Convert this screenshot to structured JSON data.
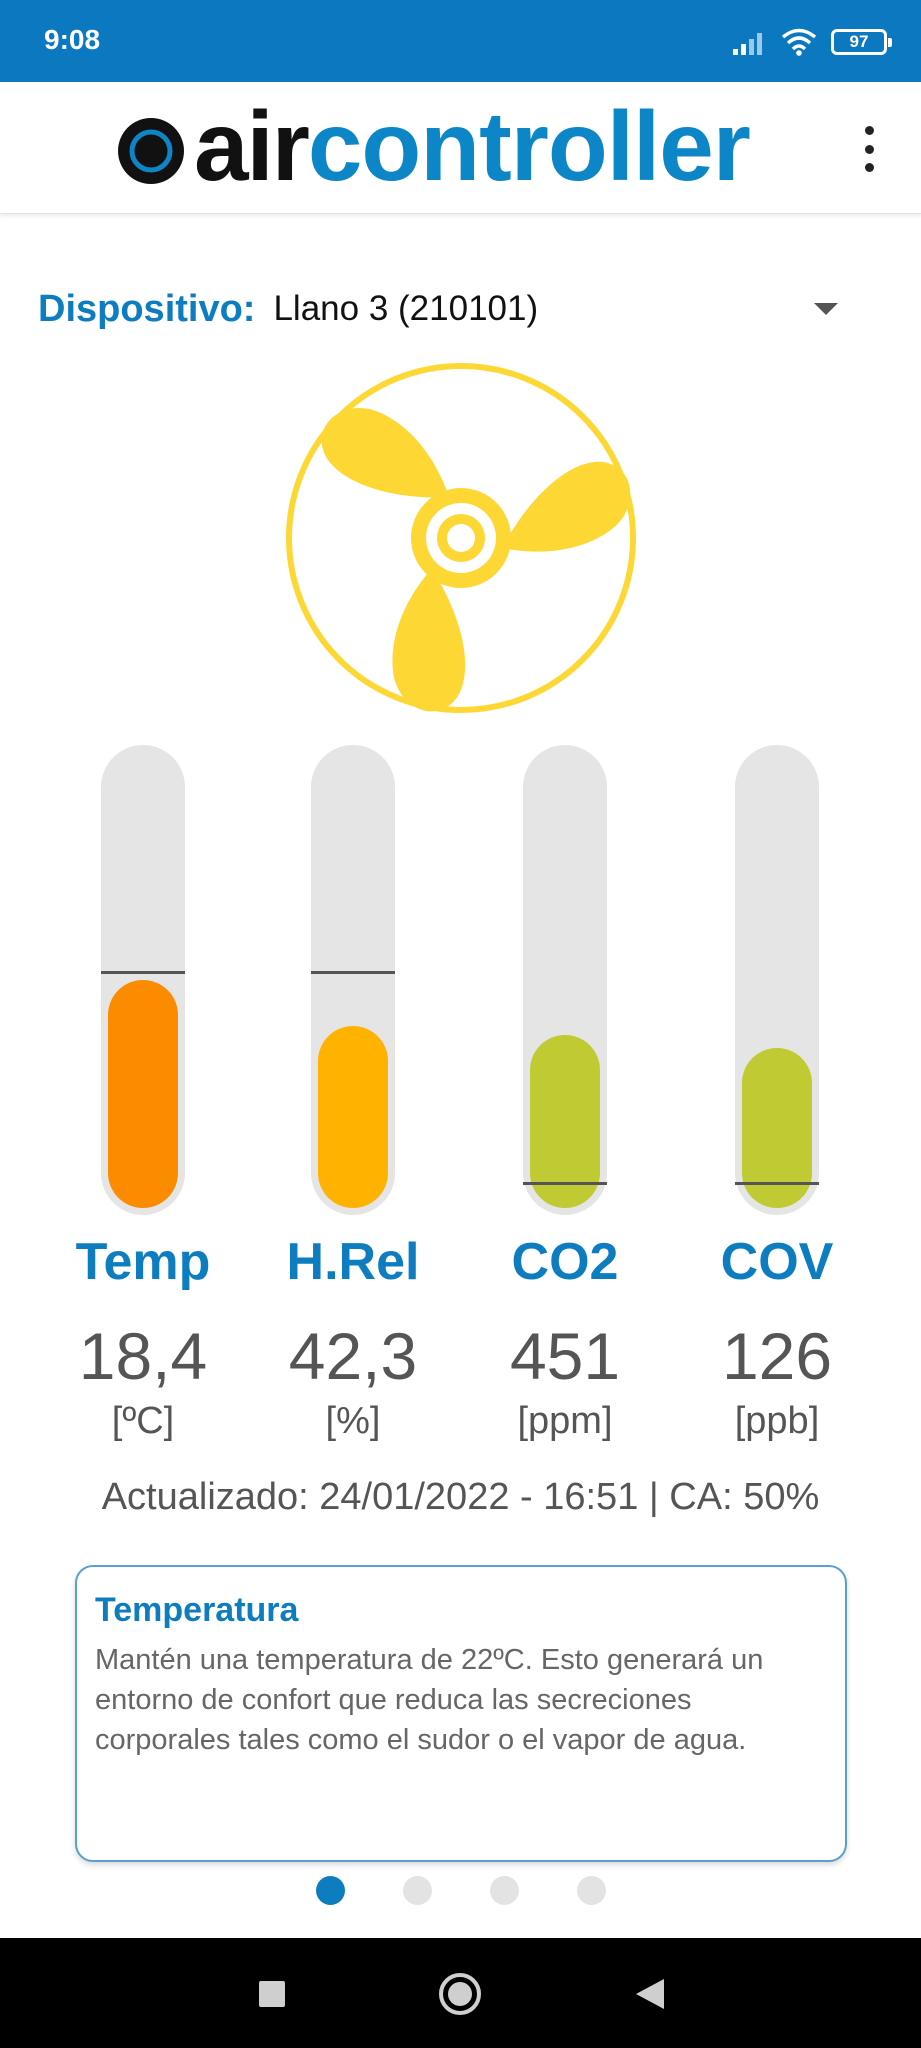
{
  "status": {
    "time": "9:08",
    "battery": "97",
    "icons": [
      "signal-icon",
      "wifi-icon",
      "battery-icon"
    ]
  },
  "app": {
    "logo_air": "air",
    "logo_controller": "controller",
    "menu_icon": "more-vert-icon"
  },
  "device": {
    "label": "Dispositivo:",
    "value": "Llano 3 (210101)"
  },
  "fan": {
    "icon": "fan-icon",
    "color": "#fdd835"
  },
  "metrics": [
    {
      "name": "Temp",
      "value": "18,4",
      "unit": "[ºC]",
      "level": 0.5,
      "ref_level": 0.52,
      "color": "#fb8c00"
    },
    {
      "name": "H.Rel",
      "value": "42,3",
      "unit": "[%]",
      "level": 0.4,
      "ref_level": 0.52,
      "color": "#ffb300"
    },
    {
      "name": "CO2",
      "value": "451",
      "unit": "[ppm]",
      "level": 0.38,
      "ref_level": 0.07,
      "color": "#c0ca33"
    },
    {
      "name": "COV",
      "value": "126",
      "unit": "[ppb]",
      "level": 0.35,
      "ref_level": 0.07,
      "color": "#c0ca33"
    }
  ],
  "updated": "Actualizado: 24/01/2022 - 16:51 | CA: 50%",
  "tip": {
    "title": "Temperatura",
    "body": "Mantén una temperatura de 22ºC. Esto generará un entorno de confort que reduca las secreciones corporales tales como el sudor o el vapor de agua."
  },
  "pager": {
    "count": 4,
    "active": 0
  },
  "colors": {
    "primary": "#0b78c0",
    "accent": "#0d86c8",
    "track": "#e5e5e5"
  },
  "navbar": {
    "icons": [
      "recents-icon",
      "home-icon",
      "back-icon"
    ]
  }
}
